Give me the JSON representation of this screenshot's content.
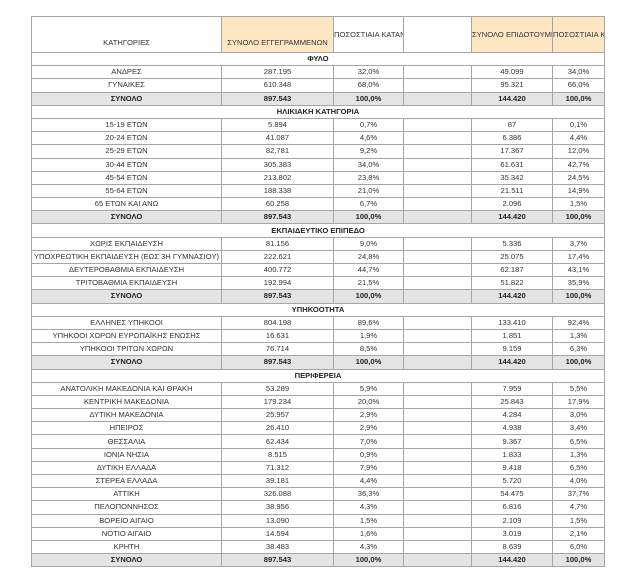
{
  "header": {
    "category": "ΚΑΤΗΓΟΡΙΕΣ",
    "registered": "ΣΥΝΟΛΟ ΕΓΓΕΓΡΑΜΜΕΝΩΝ",
    "pct1": "ΠΟΣΟΣΤΙΑΙΑ ΚΑΤΑΝΟΜΗ",
    "beneficiaries": "ΣΥΝΟΛΟ ΕΠΙΔΟΤΟΥΜΕΝΩΝ",
    "pct2": "ΠΟΣΟΣΤΙΑΙΑ ΚΑΤΑΝΟΜΗ"
  },
  "colors": {
    "header_bg": "#fde6c2",
    "total_bg": "#e4e4e4",
    "border": "#a6a6a6"
  },
  "sections": [
    {
      "title": "ΦΥΛΟ",
      "rows": [
        [
          "ΑΝΔΡΕΣ",
          "287.195",
          "32,0%",
          "49.099",
          "34,0%"
        ],
        [
          "ΓΥΝΑΙΚΕΣ",
          "610.348",
          "68,0%",
          "95.321",
          "66,0%"
        ]
      ],
      "total": [
        "ΣΥΝΟΛΟ",
        "897.543",
        "100,0%",
        "144.420",
        "100,0%"
      ]
    },
    {
      "title": "ΗΛΙΚΙΑΚΗ ΚΑΤΗΓΟΡΙΑ",
      "rows": [
        [
          "15-19 ΕΤΩΝ",
          "5.894",
          "0,7%",
          "87",
          "0,1%"
        ],
        [
          "20-24 ΕΤΩΝ",
          "41.087",
          "4,6%",
          "6.386",
          "4,4%"
        ],
        [
          "25-29 ΕΤΩΝ",
          "82.781",
          "9,2%",
          "17.367",
          "12,0%"
        ],
        [
          "30-44 ΕΤΩΝ",
          "305.383",
          "34,0%",
          "61.631",
          "42,7%"
        ],
        [
          "45-54 ΕΤΩΝ",
          "213.802",
          "23,8%",
          "35.342",
          "24,5%"
        ],
        [
          "55-64 ΕΤΩΝ",
          "188.338",
          "21,0%",
          "21.511",
          "14,9%"
        ],
        [
          "65 ΕΤΩΝ ΚΑΙ ΑΝΩ",
          "60.258",
          "6,7%",
          "2.096",
          "1,5%"
        ]
      ],
      "total": [
        "ΣΥΝΟΛΟ",
        "897.543",
        "100,0%",
        "144.420",
        "100,0%"
      ]
    },
    {
      "title": "ΕΚΠΑΙΔΕΥΤΙΚΟ ΕΠΙΠΕΔΟ",
      "rows": [
        [
          "ΧΩΡΙΣ ΕΚΠΑΙΔΕΥΣΗ",
          "81.156",
          "9,0%",
          "5.336",
          "3,7%"
        ],
        [
          "ΥΠΟΧΡΕΩΤΙΚΗ ΕΚΠΑΙΔΕΥΣΗ (ΕΩΣ 3Η ΓΥΜΝΑΣΙΟΥ)",
          "222.621",
          "24,8%",
          "25.075",
          "17,4%"
        ],
        [
          "ΔΕΥΤΕΡΟΒΑΘΜΙΑ ΕΚΠΑΙΔΕΥΣΗ",
          "400.772",
          "44,7%",
          "62.187",
          "43,1%"
        ],
        [
          "ΤΡΙΤΟΒΑΘΜΙΑ ΕΚΠΑΙΔΕΥΣΗ",
          "192.994",
          "21,5%",
          "51.822",
          "35,9%"
        ]
      ],
      "total": [
        "ΣΥΝΟΛΟ",
        "897.543",
        "100,0%",
        "144.420",
        "100,0%"
      ]
    },
    {
      "title": "ΥΠΗΚΟΟΤΗΤΑ",
      "rows": [
        [
          "ΕΛΛΗΝΕΣ ΥΠΗΚΟΟΙ",
          "804.198",
          "89,6%",
          "133.410",
          "92,4%"
        ],
        [
          "ΥΠΗΚΟΟΙ ΧΩΡΩΝ ΕΥΡΩΠΑΪΚΗΣ ΕΝΩΣΗΣ",
          "16.631",
          "1,9%",
          "1.851",
          "1,3%"
        ],
        [
          "ΥΠΗΚΟΟΙ ΤΡΙΤΩΝ ΧΩΡΩΝ",
          "76.714",
          "8,5%",
          "9.159",
          "6,3%"
        ]
      ],
      "total": [
        "ΣΥΝΟΛΟ",
        "897.543",
        "100,0%",
        "144.420",
        "100,0%"
      ]
    },
    {
      "title": "ΠΕΡΙΦΕΡΕΙΑ",
      "rows": [
        [
          "ΑΝΑΤΟΛΙΚΗ ΜΑΚΕΔΟΝΙΑ ΚΑΙ ΘΡΑΚΗ",
          "53.289",
          "5,9%",
          "7.959",
          "5,5%"
        ],
        [
          "ΚΕΝΤΡΙΚΗ ΜΑΚΕΔΟΝΙΑ",
          "179.234",
          "20,0%",
          "25.843",
          "17,9%"
        ],
        [
          "ΔΥΤΙΚΗ ΜΑΚΕΔΟΝΙΑ",
          "25.957",
          "2,9%",
          "4.284",
          "3,0%"
        ],
        [
          "ΗΠΕΙΡΟΣ",
          "26.410",
          "2,9%",
          "4.938",
          "3,4%"
        ],
        [
          "ΘΕΣΣΑΛΙΑ",
          "62.434",
          "7,0%",
          "9.367",
          "6,5%"
        ],
        [
          "ΙΟΝΙΑ ΝΗΣΙΑ",
          "8.515",
          "0,9%",
          "1.833",
          "1,3%"
        ],
        [
          "ΔΥΤΙΚΗ ΕΛΛΑΔΑ",
          "71.312",
          "7,9%",
          "9.418",
          "6,5%"
        ],
        [
          "ΣΤΕΡΕΑ ΕΛΛΑΔΑ",
          "39.181",
          "4,4%",
          "5.720",
          "4,0%"
        ],
        [
          "ΑΤΤΙΚΗ",
          "326.088",
          "36,3%",
          "54.475",
          "37,7%"
        ],
        [
          "ΠΕΛΟΠΟΝΝΗΣΟΣ",
          "38.956",
          "4,3%",
          "6.816",
          "4,7%"
        ],
        [
          "ΒΟΡΕΙΟ ΑΙΓΑΙΟ",
          "13.090",
          "1,5%",
          "2.109",
          "1,5%"
        ],
        [
          "ΝΟΤΙΟ ΑΙΓΑΙΟ",
          "14.594",
          "1,6%",
          "3.019",
          "2,1%"
        ],
        [
          "ΚΡΗΤΗ",
          "38.483",
          "4,3%",
          "8.639",
          "6,0%"
        ]
      ],
      "total": [
        "ΣΥΝΟΛΟ",
        "897.543",
        "100,0%",
        "144.420",
        "100,0%"
      ]
    }
  ]
}
